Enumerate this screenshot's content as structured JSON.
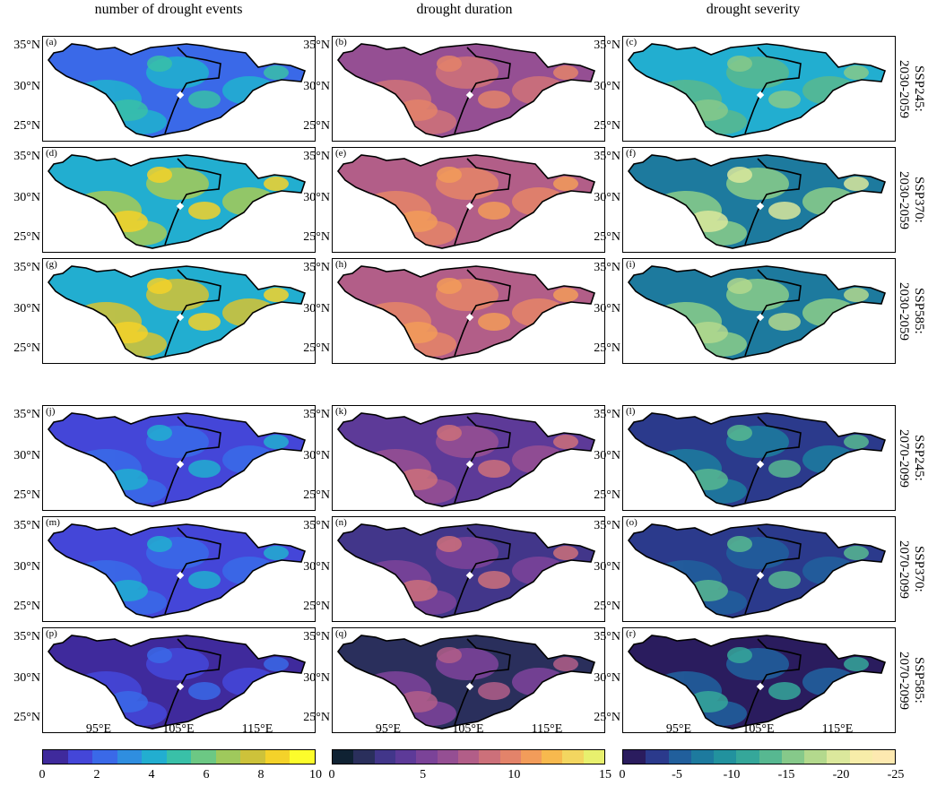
{
  "columns": [
    "number of drought events",
    "drought duration",
    "drought severity"
  ],
  "panel_labels": [
    "(a)",
    "(b)",
    "(c)",
    "(d)",
    "(e)",
    "(f)",
    "(g)",
    "(h)",
    "(i)",
    "(j)",
    "(k)",
    "(l)",
    "(m)",
    "(n)",
    "(o)",
    "(p)",
    "(q)",
    "(r)"
  ],
  "rows": [
    "SSP245:\n2030-2059",
    "SSP370:\n2030-2059",
    "SSP585:\n2030-2059",
    "SSP245:\n2070-2099",
    "SSP370:\n2070-2099",
    "SSP585:\n2070-2099"
  ],
  "lat_ticks": [
    "35°N",
    "30°N",
    "25°N"
  ],
  "lon_ticks": [
    "95°E",
    "105°E",
    "115°E"
  ],
  "colorbars": [
    {
      "ticks": [
        "0",
        "2",
        "4",
        "6",
        "8",
        "10"
      ],
      "colors": [
        "#3f2a9c",
        "#4446d8",
        "#3a69e8",
        "#2f8ee0",
        "#22aed0",
        "#39c0a8",
        "#6cc884",
        "#9fc95c",
        "#cdc23a",
        "#f4d22a",
        "#fcfc2c"
      ]
    },
    {
      "ticks": [
        "0",
        "5",
        "10",
        "15"
      ],
      "colors": [
        "#0f2233",
        "#2a2f5c",
        "#42368a",
        "#5d3a98",
        "#7b4398",
        "#954f93",
        "#b25e88",
        "#cc707a",
        "#e3836a",
        "#f29c5a",
        "#f7b94e",
        "#f3d660",
        "#e8f06e"
      ]
    },
    {
      "ticks": [
        "0",
        "-5",
        "-10",
        "-15",
        "-20",
        "-25"
      ],
      "colors": [
        "#2a1c5e",
        "#2b3a8c",
        "#215f9c",
        "#1d7a9e",
        "#22929e",
        "#35a79a",
        "#57b891",
        "#86c98a",
        "#b3d98d",
        "#dbe89c",
        "#f7eda9",
        "#fde9b0"
      ]
    }
  ],
  "panel_fills": {
    "col0": [
      [
        "#3a69e8",
        "#22aed0",
        "#39c0a8"
      ],
      [
        "#22aed0",
        "#9fc95c",
        "#f4d22a"
      ],
      [
        "#22aed0",
        "#cdc23a",
        "#f4d22a"
      ],
      [
        "#4446d8",
        "#3a69e8",
        "#22aed0"
      ],
      [
        "#4446d8",
        "#3a69e8",
        "#22aed0"
      ],
      [
        "#3f2a9c",
        "#4446d8",
        "#3a69e8"
      ]
    ],
    "col1": [
      [
        "#954f93",
        "#cc707a",
        "#e3836a"
      ],
      [
        "#b25e88",
        "#e3836a",
        "#f29c5a"
      ],
      [
        "#b25e88",
        "#e3836a",
        "#f29c5a"
      ],
      [
        "#5d3a98",
        "#954f93",
        "#cc707a"
      ],
      [
        "#42368a",
        "#7b4398",
        "#cc707a"
      ],
      [
        "#2a2f5c",
        "#7b4398",
        "#b25e88"
      ]
    ],
    "col2": [
      [
        "#22aed0",
        "#57b891",
        "#86c98a"
      ],
      [
        "#1d7a9e",
        "#86c98a",
        "#dbe89c"
      ],
      [
        "#1d7a9e",
        "#86c98a",
        "#b3d98d"
      ],
      [
        "#2b3a8c",
        "#1d7a9e",
        "#57b891"
      ],
      [
        "#2b3a8c",
        "#215f9c",
        "#57b891"
      ],
      [
        "#2a1c5e",
        "#215f9c",
        "#35a79a"
      ]
    ]
  }
}
